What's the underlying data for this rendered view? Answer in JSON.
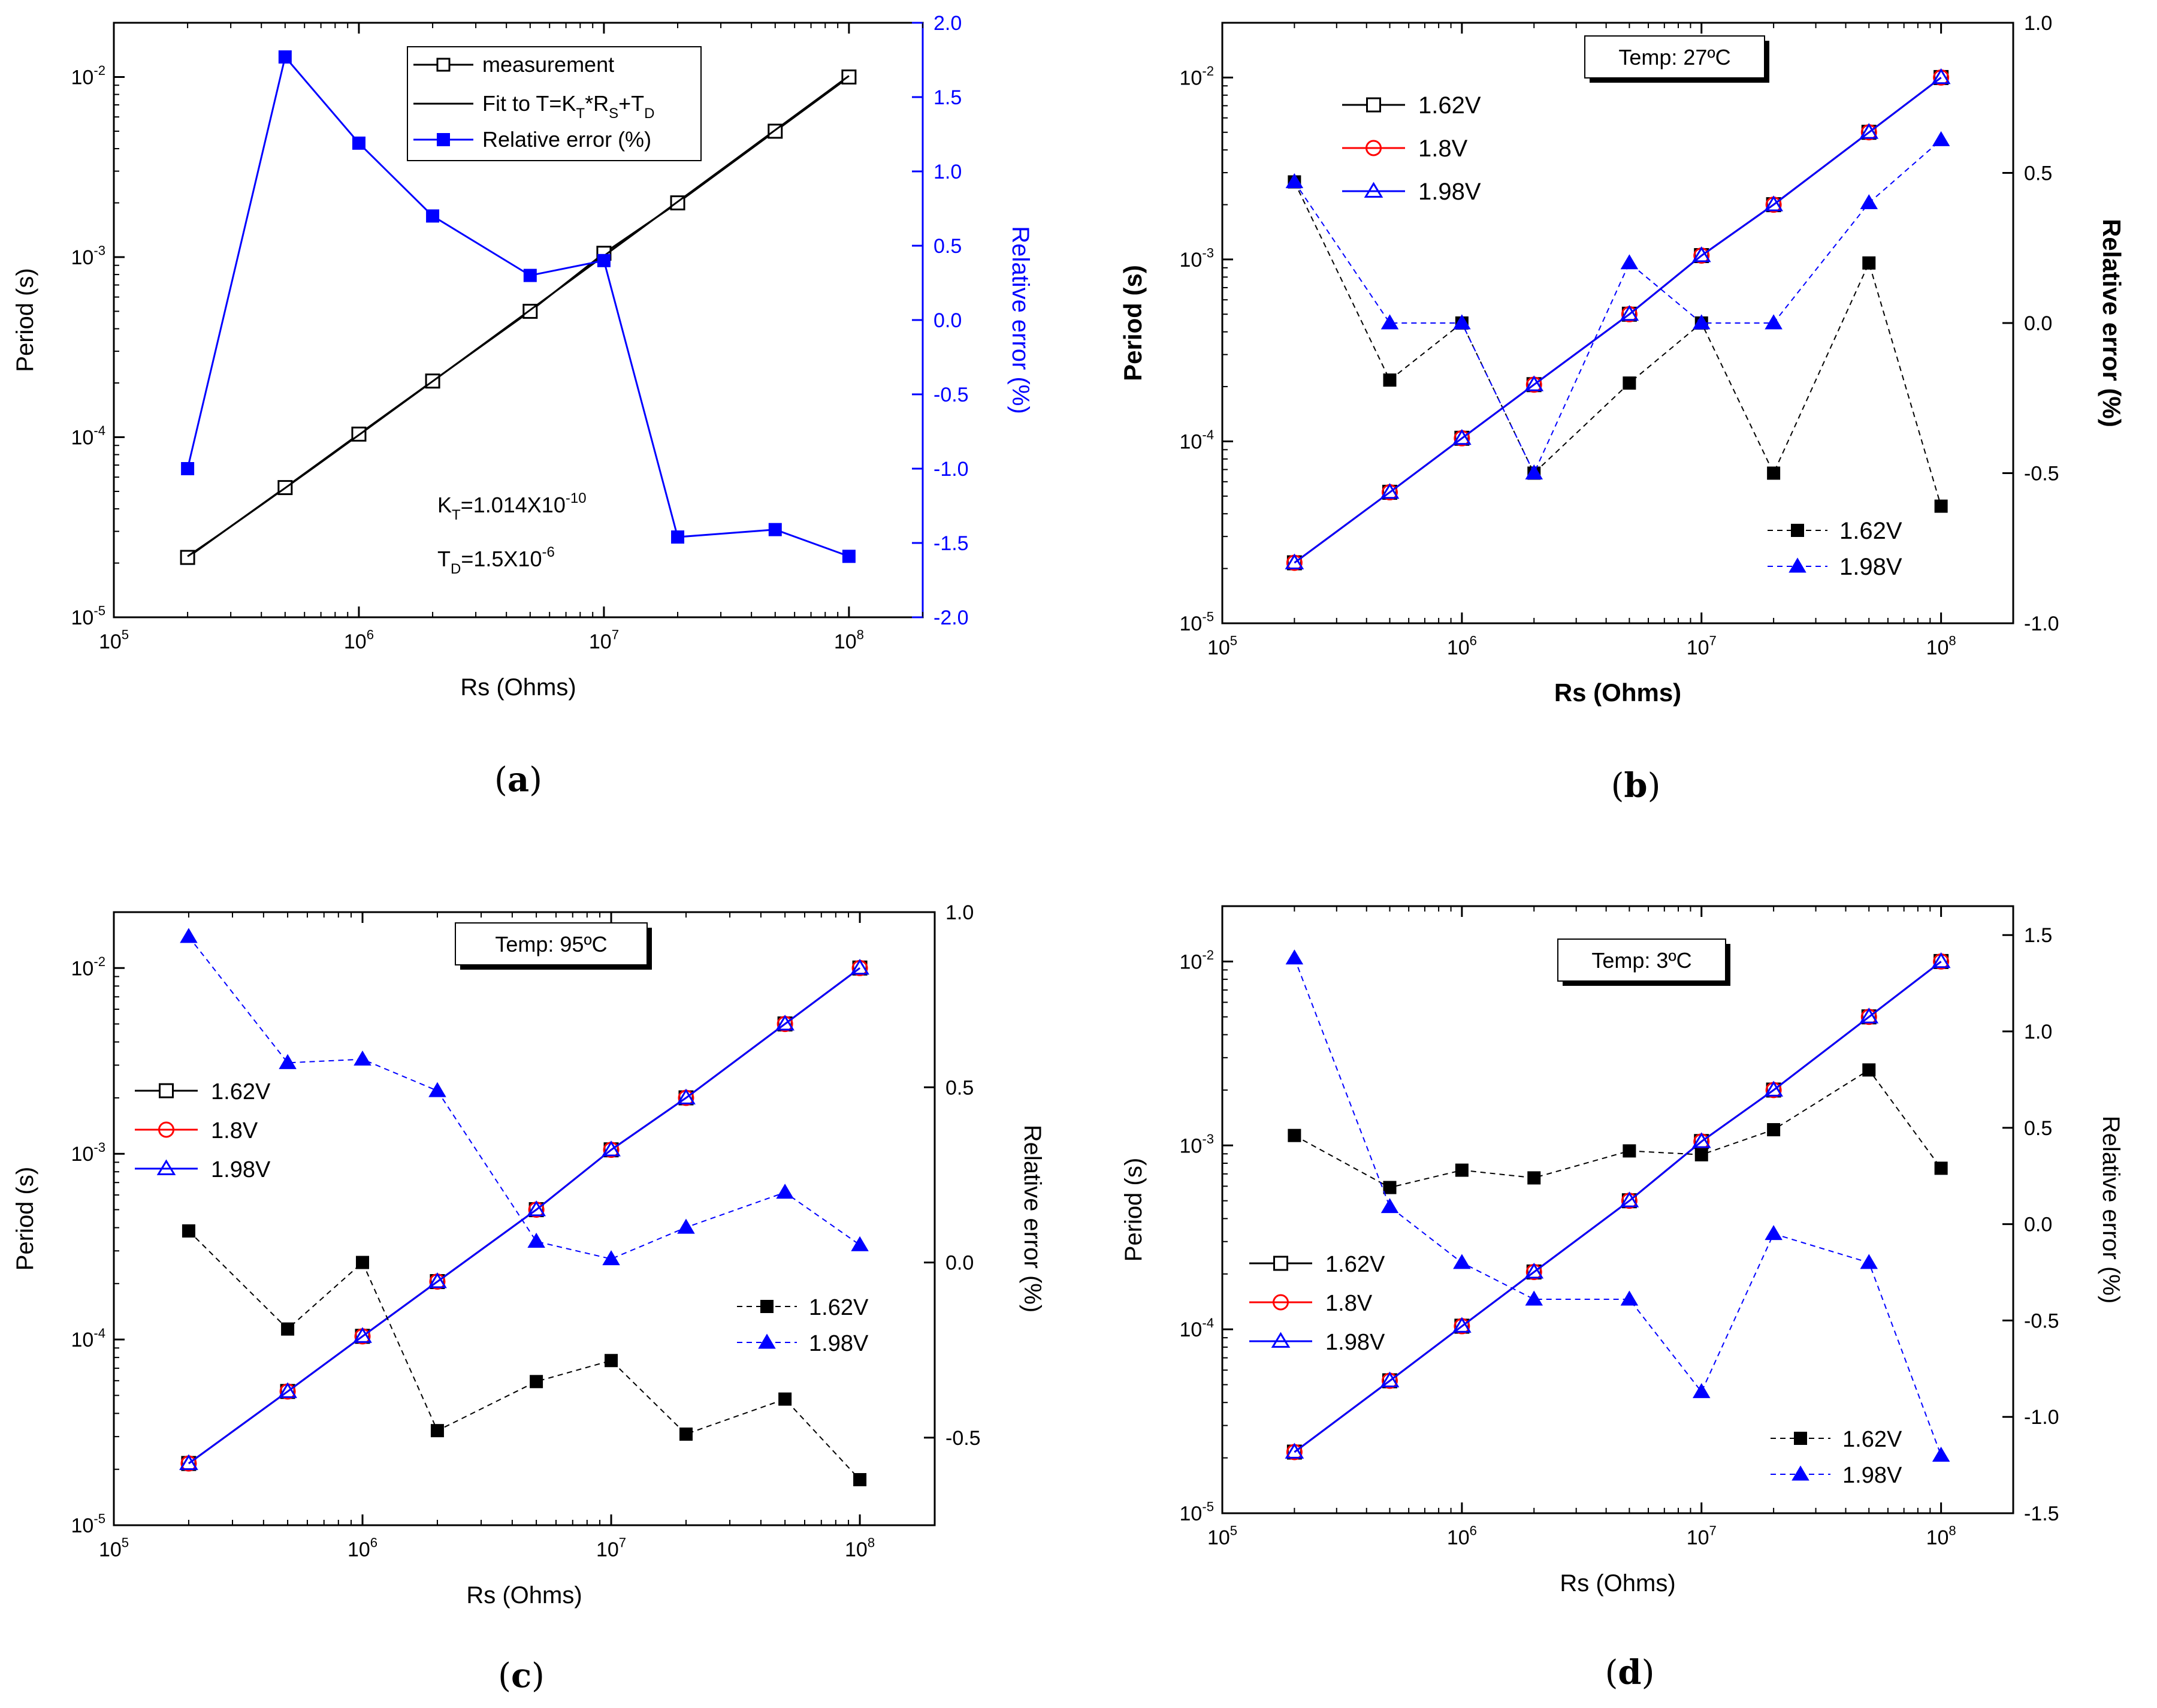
{
  "figure": {
    "panels": [
      "a",
      "b",
      "c",
      "d"
    ]
  },
  "chart_data": [
    {
      "id": "a",
      "type": "line",
      "letter": "a",
      "xlabel": "Rs (Ohms)",
      "ylabel": "Period (s)",
      "y2label": "Relative error (%)",
      "x_log_range": [
        100000,
        200000000
      ],
      "y_log_range": [
        1e-05,
        0.02
      ],
      "y2_range": [
        -2.0,
        2.0
      ],
      "y2_ticks": [
        "-2.0",
        "-1.5",
        "-1.0",
        "-0.5",
        "0.0",
        "0.5",
        "1.0",
        "1.5",
        "2.0"
      ],
      "y2_tick_values": [
        -2.0,
        -1.5,
        -1.0,
        -0.5,
        0.0,
        0.5,
        1.0,
        1.5,
        2.0
      ],
      "y2_color": "#0000ff",
      "x_ticks": [
        "10",
        "10",
        "10",
        "10"
      ],
      "x_tick_exp": [
        "5",
        "6",
        "7",
        "8"
      ],
      "y_ticks": [
        "10",
        "10",
        "10",
        "10"
      ],
      "y_tick_exp": [
        "-5",
        "-4",
        "-3",
        "-2"
      ],
      "x": [
        200000,
        500000,
        1000000,
        2000000,
        5000000,
        10000000,
        20000000,
        50000000,
        100000000
      ],
      "series": [
        {
          "name": "measurement",
          "axis": "left",
          "marker": "square-open",
          "color": "#000000",
          "line": "solid",
          "values": [
            2.15e-05,
            5.25e-05,
            0.000104,
            0.000205,
            0.0005,
            0.00105,
            0.002,
            0.005,
            0.01
          ]
        },
        {
          "name": "Fit to T=K",
          "axis": "left",
          "marker": "none",
          "color": "#000000",
          "line": "solid",
          "fit": {
            "kt": 1.014e-10,
            "td": 1.5e-06
          }
        },
        {
          "name": "Relative error (%)",
          "axis": "right",
          "marker": "square-filled",
          "color": "#0000ff",
          "line": "solid",
          "values": [
            -1.0,
            1.77,
            1.19,
            0.7,
            0.3,
            0.4,
            -1.46,
            -1.41,
            -1.59
          ]
        }
      ],
      "legend": [
        {
          "text": "measurement",
          "series": 0
        },
        {
          "text": "Fit to T=K",
          "sub1": "T",
          "mid": "*R",
          "sub2": "S",
          "tail": "+T",
          "sub3": "D",
          "series": 1
        },
        {
          "text": "Relative error (%)",
          "series": 2
        }
      ],
      "legend_position": "top-center",
      "annotations": {
        "kt_main": "K",
        "kt_sub": "T",
        "kt_val": "=1.014X10",
        "kt_exp": "-10",
        "td_main": "T",
        "td_sub": "D",
        "td_val": "=1.5X10",
        "td_exp": "-6"
      }
    },
    {
      "id": "b",
      "type": "line",
      "letter": "b",
      "xlabel": "Rs (Ohms)",
      "ylabel": "Period (s)",
      "y2label": "Relative error (%)",
      "temp_label": "Temp: 27ºC",
      "x_log_range": [
        100000,
        200000000
      ],
      "y_log_range": [
        1e-05,
        0.02
      ],
      "y2_range": [
        -1.0,
        1.0
      ],
      "y2_ticks": [
        "-1.0",
        "-0.5",
        "0.0",
        "0.5",
        "1.0"
      ],
      "y2_tick_values": [
        -1.0,
        -0.5,
        0.0,
        0.5,
        1.0
      ],
      "y2_color": "#000000",
      "x_ticks": [
        "10",
        "10",
        "10",
        "10"
      ],
      "x_tick_exp": [
        "5",
        "6",
        "7",
        "8"
      ],
      "y_ticks": [
        "10",
        "10",
        "10",
        "10"
      ],
      "y_tick_exp": [
        "-5",
        "-4",
        "-3",
        "-2"
      ],
      "x": [
        200000,
        500000,
        1000000,
        2000000,
        5000000,
        10000000,
        20000000,
        50000000,
        100000000
      ],
      "series": [
        {
          "name": "1.62V",
          "axis": "left",
          "marker": "square-open",
          "color": "#000000",
          "line": "solid",
          "values": [
            2.15e-05,
            5.25e-05,
            0.000104,
            0.000205,
            0.0005,
            0.00105,
            0.002,
            0.005,
            0.01
          ]
        },
        {
          "name": "1.8V",
          "axis": "left",
          "marker": "circle-open",
          "color": "#ff0000",
          "line": "solid",
          "values": [
            2.15e-05,
            5.25e-05,
            0.000104,
            0.000205,
            0.0005,
            0.00105,
            0.002,
            0.005,
            0.01
          ]
        },
        {
          "name": "1.98V",
          "axis": "left",
          "marker": "triangle-open",
          "color": "#0000ff",
          "line": "solid",
          "values": [
            2.15e-05,
            5.25e-05,
            0.000104,
            0.000205,
            0.0005,
            0.00105,
            0.002,
            0.005,
            0.01
          ]
        },
        {
          "name": "1.62V",
          "axis": "right",
          "marker": "square-filled",
          "color": "#000000",
          "line": "dashed",
          "values": [
            0.47,
            -0.19,
            0.0,
            -0.5,
            -0.2,
            0.0,
            -0.5,
            0.2,
            -0.61
          ]
        },
        {
          "name": "1.98V",
          "axis": "right",
          "marker": "triangle-filled",
          "color": "#0000ff",
          "line": "dashed",
          "values": [
            0.47,
            0.0,
            0.0,
            -0.5,
            0.2,
            0.0,
            0.0,
            0.4,
            0.61
          ]
        }
      ],
      "legend": [
        {
          "text": "1.62V",
          "series": 0
        },
        {
          "text": "1.8V",
          "series": 1
        },
        {
          "text": "1.98V",
          "series": 2
        }
      ],
      "legend2": [
        {
          "text": "1.62V",
          "series": 3
        },
        {
          "text": "1.98V",
          "series": 4
        }
      ]
    },
    {
      "id": "c",
      "type": "line",
      "letter": "c",
      "xlabel": "Rs (Ohms)",
      "ylabel": "Period (s)",
      "y2label": "Relative error (%)",
      "temp_label": "Temp: 95ºC",
      "x_log_range": [
        100000,
        200000000
      ],
      "y_log_range": [
        1e-05,
        0.02
      ],
      "y2_range": [
        -0.75,
        1.0
      ],
      "y2_ticks": [
        "-0.5",
        "0.0",
        "0.5",
        "1.0"
      ],
      "y2_tick_values": [
        -0.5,
        0.0,
        0.5,
        1.0
      ],
      "y2_color": "#000000",
      "x_ticks": [
        "10",
        "10",
        "10",
        "10"
      ],
      "x_tick_exp": [
        "5",
        "6",
        "7",
        "8"
      ],
      "y_ticks": [
        "10",
        "10",
        "10",
        "10"
      ],
      "y_tick_exp": [
        "-5",
        "-4",
        "-3",
        "-2"
      ],
      "x": [
        200000,
        500000,
        1000000,
        2000000,
        5000000,
        10000000,
        20000000,
        50000000,
        100000000
      ],
      "series": [
        {
          "name": "1.62V",
          "axis": "left",
          "marker": "square-open",
          "color": "#000000",
          "line": "solid",
          "values": [
            2.15e-05,
            5.25e-05,
            0.000104,
            0.000205,
            0.0005,
            0.00105,
            0.002,
            0.005,
            0.01
          ]
        },
        {
          "name": "1.8V",
          "axis": "left",
          "marker": "circle-open",
          "color": "#ff0000",
          "line": "solid",
          "values": [
            2.15e-05,
            5.25e-05,
            0.000104,
            0.000205,
            0.0005,
            0.00105,
            0.002,
            0.005,
            0.01
          ]
        },
        {
          "name": "1.98V",
          "axis": "left",
          "marker": "triangle-open",
          "color": "#0000ff",
          "line": "solid",
          "values": [
            2.15e-05,
            5.25e-05,
            0.000104,
            0.000205,
            0.0005,
            0.00105,
            0.002,
            0.005,
            0.01
          ]
        },
        {
          "name": "1.62V",
          "axis": "right",
          "marker": "square-filled",
          "color": "#000000",
          "line": "dashed",
          "values": [
            0.09,
            -0.19,
            0.0,
            -0.48,
            -0.34,
            -0.28,
            -0.49,
            -0.39,
            -0.62
          ]
        },
        {
          "name": "1.98V",
          "axis": "right",
          "marker": "triangle-filled",
          "color": "#0000ff",
          "line": "dashed",
          "values": [
            0.93,
            0.57,
            0.58,
            0.49,
            0.06,
            0.01,
            0.1,
            0.2,
            0.05
          ]
        }
      ],
      "legend": [
        {
          "text": "1.62V",
          "series": 0
        },
        {
          "text": "1.8V",
          "series": 1
        },
        {
          "text": "1.98V",
          "series": 2
        }
      ],
      "legend2": [
        {
          "text": "1.62V",
          "series": 3
        },
        {
          "text": "1.98V",
          "series": 4
        }
      ]
    },
    {
      "id": "d",
      "type": "line",
      "letter": "d",
      "xlabel": "Rs (Ohms)",
      "ylabel": "Period (s)",
      "y2label": "Relative error (%)",
      "temp_label": "Temp: 3ºC",
      "x_log_range": [
        100000,
        200000000
      ],
      "y_log_range": [
        1e-05,
        0.02
      ],
      "y2_range": [
        -1.5,
        1.65
      ],
      "y2_ticks": [
        "-1.5",
        "-1.0",
        "-0.5",
        "0.0",
        "0.5",
        "1.0",
        "1.5"
      ],
      "y2_tick_values": [
        -1.5,
        -1.0,
        -0.5,
        0.0,
        0.5,
        1.0,
        1.5
      ],
      "y2_color": "#000000",
      "x_ticks": [
        "10",
        "10",
        "10",
        "10"
      ],
      "x_tick_exp": [
        "5",
        "6",
        "7",
        "8"
      ],
      "y_ticks": [
        "10",
        "10",
        "10",
        "10"
      ],
      "y_tick_exp": [
        "-5",
        "-4",
        "-3",
        "-2"
      ],
      "x": [
        200000,
        500000,
        1000000,
        2000000,
        5000000,
        10000000,
        20000000,
        50000000,
        100000000
      ],
      "series": [
        {
          "name": "1.62V",
          "axis": "left",
          "marker": "square-open",
          "color": "#000000",
          "line": "solid",
          "values": [
            2.15e-05,
            5.25e-05,
            0.000104,
            0.000205,
            0.0005,
            0.00105,
            0.002,
            0.005,
            0.01
          ]
        },
        {
          "name": "1.8V",
          "axis": "left",
          "marker": "circle-open",
          "color": "#ff0000",
          "line": "solid",
          "values": [
            2.15e-05,
            5.25e-05,
            0.000104,
            0.000205,
            0.0005,
            0.00105,
            0.002,
            0.005,
            0.01
          ]
        },
        {
          "name": "1.98V",
          "axis": "left",
          "marker": "triangle-open",
          "color": "#0000ff",
          "line": "solid",
          "values": [
            2.15e-05,
            5.25e-05,
            0.000104,
            0.000205,
            0.0005,
            0.00105,
            0.002,
            0.005,
            0.01
          ]
        },
        {
          "name": "1.62V",
          "axis": "right",
          "marker": "square-filled",
          "color": "#000000",
          "line": "dashed",
          "values": [
            0.46,
            0.19,
            0.28,
            0.24,
            0.38,
            0.36,
            0.49,
            0.8,
            0.29
          ]
        },
        {
          "name": "1.98V",
          "axis": "right",
          "marker": "triangle-filled",
          "color": "#0000ff",
          "line": "dashed",
          "values": [
            1.38,
            0.09,
            -0.2,
            -0.39,
            -0.39,
            -0.87,
            -0.05,
            -0.2,
            -1.2
          ]
        }
      ],
      "legend": [
        {
          "text": "1.62V",
          "series": 0
        },
        {
          "text": "1.8V",
          "series": 1
        },
        {
          "text": "1.98V",
          "series": 2
        }
      ],
      "legend2": [
        {
          "text": "1.62V",
          "series": 3
        },
        {
          "text": "1.98V",
          "series": 4
        }
      ]
    }
  ]
}
